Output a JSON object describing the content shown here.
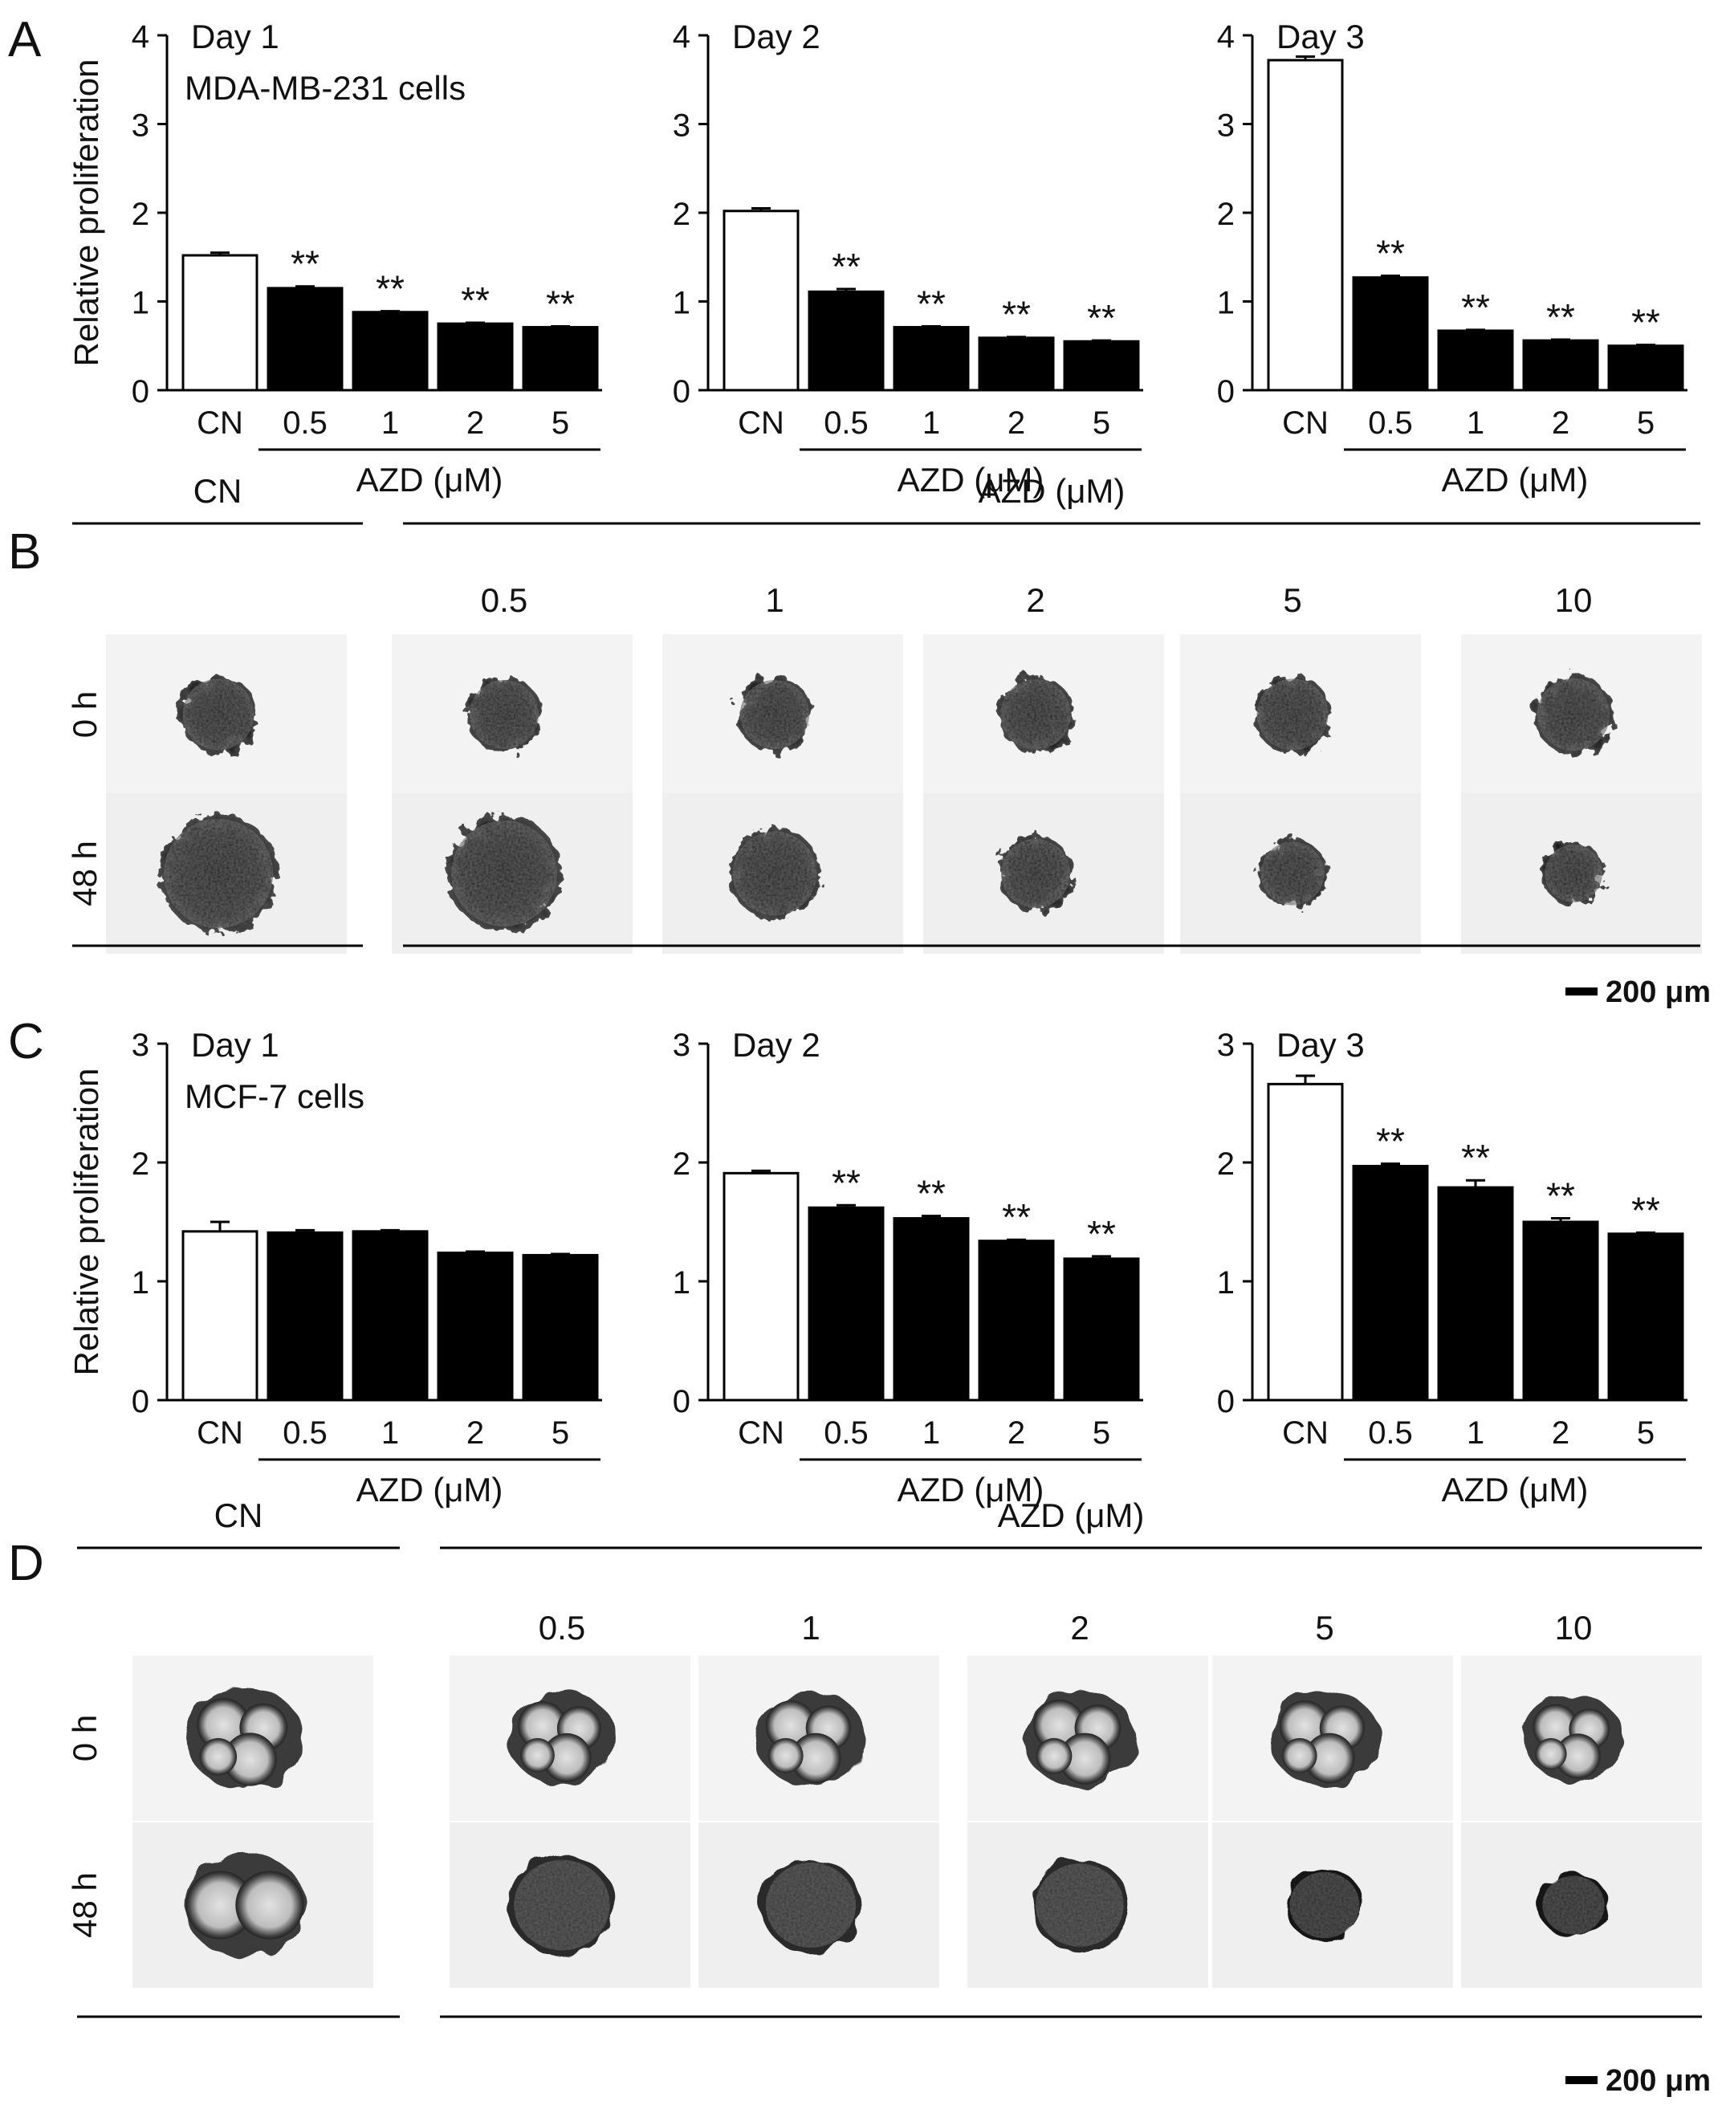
{
  "panel_labels": [
    "A",
    "B",
    "C",
    "D"
  ],
  "colors": {
    "control": "#ffffff",
    "treatment": "#000000",
    "stroke": "#000000"
  },
  "chart_data": [
    {
      "type": "bar",
      "panel": "A",
      "title": "Day 1",
      "subtitle": "MDA-MB-231 cells",
      "ylabel": "Relative proliferation",
      "xlabel": "AZD (μM)",
      "ylim": [
        0,
        4
      ],
      "yticks": [
        "0",
        "1",
        "2",
        "3",
        "4"
      ],
      "categories": [
        "CN",
        "0.5",
        "1",
        "2",
        "5"
      ],
      "values": [
        1.52,
        1.15,
        0.88,
        0.75,
        0.71
      ],
      "errors": [
        0.03,
        0.02,
        0.01,
        0.01,
        0.01
      ],
      "annotations": [
        "",
        "**",
        "**",
        "**",
        "**"
      ]
    },
    {
      "type": "bar",
      "panel": "A",
      "title": "Day 2",
      "subtitle": "",
      "ylabel": "",
      "xlabel": "AZD (μM)",
      "ylim": [
        0,
        4
      ],
      "yticks": [
        "0",
        "1",
        "2",
        "3",
        "4"
      ],
      "categories": [
        "CN",
        "0.5",
        "1",
        "2",
        "5"
      ],
      "values": [
        2.02,
        1.11,
        0.71,
        0.59,
        0.55
      ],
      "errors": [
        0.03,
        0.03,
        0.01,
        0.01,
        0.01
      ],
      "annotations": [
        "",
        "**",
        "**",
        "**",
        "**"
      ]
    },
    {
      "type": "bar",
      "panel": "A",
      "title": "Day 3",
      "subtitle": "",
      "ylabel": "",
      "xlabel": "AZD (μM)",
      "ylim": [
        0,
        4
      ],
      "yticks": [
        "0",
        "1",
        "2",
        "3",
        "4"
      ],
      "categories": [
        "CN",
        "0.5",
        "1",
        "2",
        "5"
      ],
      "values": [
        3.72,
        1.27,
        0.67,
        0.56,
        0.5
      ],
      "errors": [
        0.04,
        0.02,
        0.01,
        0.01,
        0.01
      ],
      "annotations": [
        "",
        "**",
        "**",
        "**",
        "**"
      ]
    },
    {
      "type": "bar",
      "panel": "C",
      "title": "Day 1",
      "subtitle": "MCF-7 cells",
      "ylabel": "Relative proliferation",
      "xlabel": "AZD (μM)",
      "ylim": [
        0,
        3
      ],
      "yticks": [
        "0",
        "1",
        "2",
        "3"
      ],
      "categories": [
        "CN",
        "0.5",
        "1",
        "2",
        "5"
      ],
      "values": [
        1.42,
        1.41,
        1.42,
        1.24,
        1.22
      ],
      "errors": [
        0.08,
        0.02,
        0.01,
        0.01,
        0.01
      ],
      "annotations": [
        "",
        "",
        "",
        "",
        ""
      ]
    },
    {
      "type": "bar",
      "panel": "C",
      "title": "Day 2",
      "subtitle": "",
      "ylabel": "",
      "xlabel": "AZD (μM)",
      "ylim": [
        0,
        3
      ],
      "yticks": [
        "0",
        "1",
        "2",
        "3"
      ],
      "categories": [
        "CN",
        "0.5",
        "1",
        "2",
        "5"
      ],
      "values": [
        1.91,
        1.62,
        1.53,
        1.34,
        1.19
      ],
      "errors": [
        0.02,
        0.02,
        0.02,
        0.01,
        0.02
      ],
      "annotations": [
        "",
        "**",
        "**",
        "**",
        "**"
      ]
    },
    {
      "type": "bar",
      "panel": "C",
      "title": "Day 3",
      "subtitle": "",
      "ylabel": "",
      "xlabel": "AZD (μM)",
      "ylim": [
        0,
        3
      ],
      "yticks": [
        "0",
        "1",
        "2",
        "3"
      ],
      "categories": [
        "CN",
        "0.5",
        "1",
        "2",
        "5"
      ],
      "values": [
        2.66,
        1.97,
        1.79,
        1.5,
        1.4
      ],
      "errors": [
        0.07,
        0.02,
        0.06,
        0.03,
        0.01
      ],
      "annotations": [
        "",
        "**",
        "**",
        "**",
        "**"
      ]
    }
  ],
  "image_panels": [
    {
      "panel": "B",
      "control_label": "CN",
      "group_label": "AZD (μM)",
      "doses": [
        "0.5",
        "1",
        "2",
        "5",
        "10"
      ],
      "rows": [
        "0 h",
        "48 h"
      ],
      "scalebar": "200 μm",
      "spheroid_0h": [
        0.62,
        0.6,
        0.6,
        0.61,
        0.62,
        0.63
      ],
      "spheroid_48h": [
        0.95,
        0.92,
        0.73,
        0.6,
        0.55,
        0.5
      ]
    },
    {
      "panel": "D",
      "control_label": "CN",
      "group_label": "AZD (μM)",
      "doses": [
        "0.5",
        "1",
        "2",
        "5",
        "10"
      ],
      "rows": [
        "0 h",
        "48 h"
      ],
      "scalebar": "200 μm",
      "spheroid_0h": [
        0.85,
        0.78,
        0.8,
        0.82,
        0.8,
        0.72
      ],
      "spheroid_48h": [
        0.88,
        0.85,
        0.8,
        0.78,
        0.62,
        0.55
      ]
    }
  ]
}
